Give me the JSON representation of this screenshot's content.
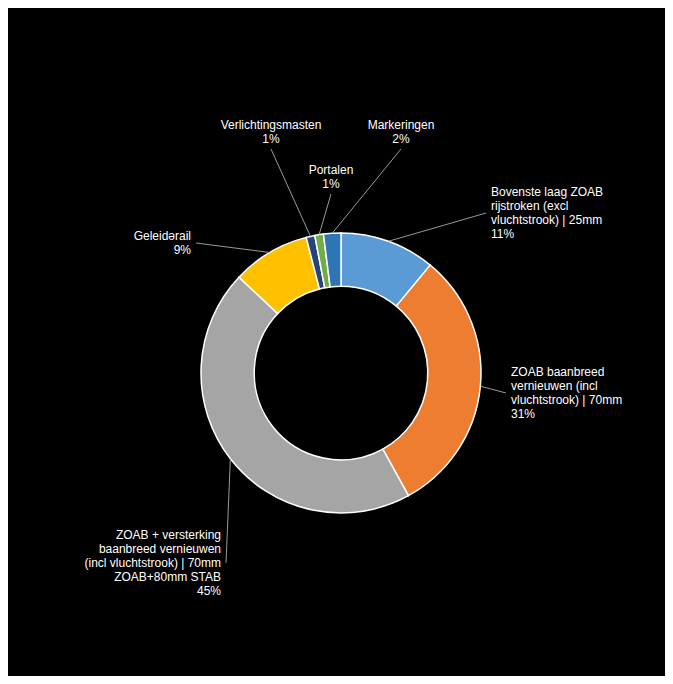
{
  "chart_data": {
    "type": "donut",
    "categories": [
      "Bovenste laag ZOAB\nrijstroken (excl\nvluchtstrook) | 25mm",
      "ZOAB baanbreed\nvernieuwen (incl\nvluchtstrook) | 70mm",
      "ZOAB + versterking\nbaanbreed vernieuwen\n(incl vluchtstrook) | 70mm\nZOAB+80mm STAB",
      "Geleidərail",
      "Verlichtingsmasten",
      "Portalen",
      "Markeringen"
    ],
    "values": [
      11,
      31,
      45,
      9,
      1,
      1,
      2
    ],
    "value_labels": [
      "11%",
      "31%",
      "45%",
      "9%",
      "1%",
      "1%",
      "2%"
    ],
    "colors": [
      "#5B9BD5",
      "#ED7D31",
      "#A5A5A5",
      "#FFC000",
      "#264478",
      "#70AD47",
      "#2E75B6"
    ]
  }
}
